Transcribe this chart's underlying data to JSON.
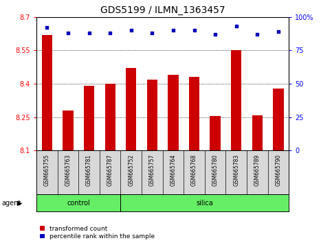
{
  "title": "GDS5199 / ILMN_1363457",
  "samples": [
    "GSM665755",
    "GSM665763",
    "GSM665781",
    "GSM665787",
    "GSM665752",
    "GSM665757",
    "GSM665764",
    "GSM665768",
    "GSM665780",
    "GSM665783",
    "GSM665789",
    "GSM665790"
  ],
  "transformed_counts": [
    8.62,
    8.28,
    8.39,
    8.4,
    8.47,
    8.42,
    8.44,
    8.43,
    8.255,
    8.55,
    8.26,
    8.38
  ],
  "percentile_ranks": [
    92,
    88,
    88,
    88,
    90,
    88,
    90,
    90,
    87,
    93,
    87,
    89
  ],
  "groups": [
    "control",
    "control",
    "control",
    "control",
    "silica",
    "silica",
    "silica",
    "silica",
    "silica",
    "silica",
    "silica",
    "silica"
  ],
  "control_count": 4,
  "bar_color": "#CC0000",
  "dot_color": "#0000BB",
  "ylim_left": [
    8.1,
    8.7
  ],
  "ylim_right": [
    0,
    100
  ],
  "yticks_left": [
    8.1,
    8.25,
    8.4,
    8.55,
    8.7
  ],
  "ytick_labels_left": [
    "8.1",
    "8.25",
    "8.4",
    "8.55",
    "8.7"
  ],
  "yticks_right": [
    0,
    25,
    50,
    75,
    100
  ],
  "ytick_labels_right": [
    "0",
    "25",
    "50",
    "75",
    "100%"
  ],
  "sample_bg": "#D8D8D8",
  "plot_bg": "#FFFFFF",
  "group_color": "#66EE66",
  "agent_label": "agent",
  "legend_items": [
    "transformed count",
    "percentile rank within the sample"
  ],
  "title_fontsize": 10,
  "tick_fontsize": 7,
  "bar_width": 0.5
}
